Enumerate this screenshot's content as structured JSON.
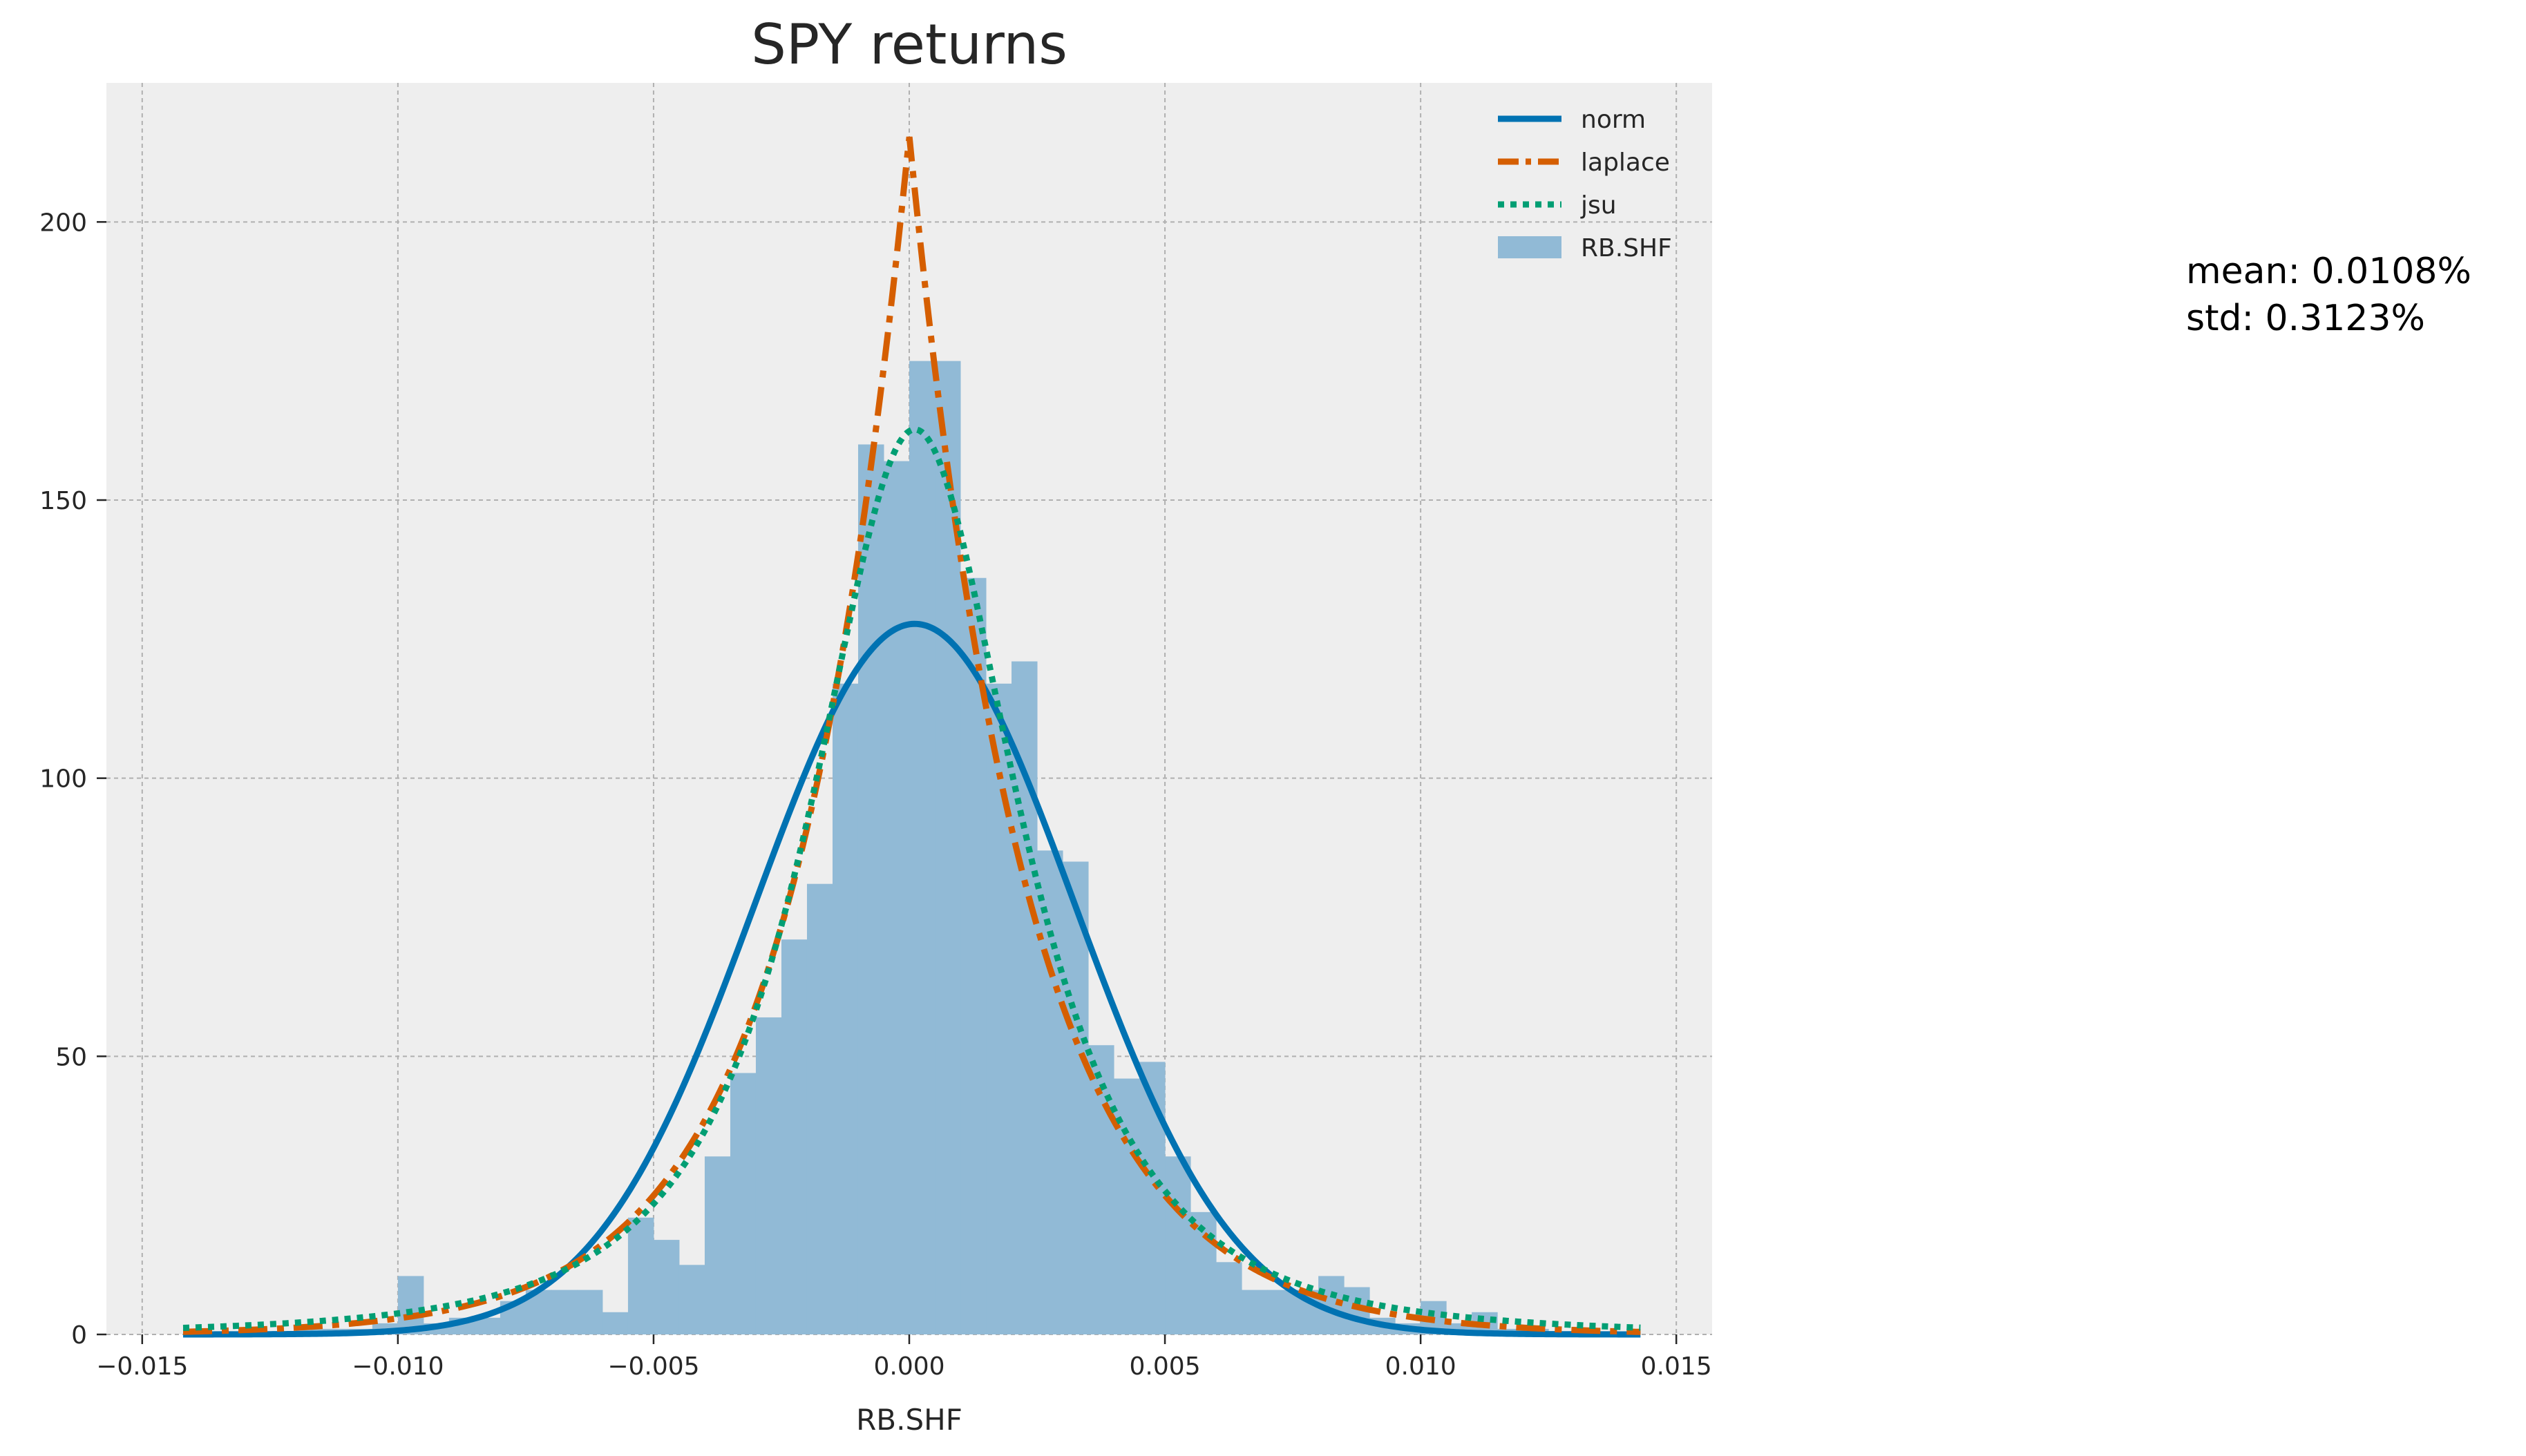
{
  "chart_data": {
    "type": "histogram",
    "title": "SPY returns",
    "xlabel": "RB.SHF",
    "ylabel": "",
    "xlim": [
      -0.0157,
      0.0157
    ],
    "ylim": [
      0,
      225
    ],
    "xticks": [
      -0.015,
      -0.01,
      -0.005,
      0.0,
      0.005,
      0.01,
      0.015
    ],
    "xtick_labels": [
      "−0.015",
      "−0.010",
      "−0.005",
      "0.000",
      "0.005",
      "0.010",
      "0.015"
    ],
    "yticks": [
      0,
      50,
      100,
      150,
      200
    ],
    "ytick_labels": [
      "0",
      "50",
      "100",
      "150",
      "200"
    ],
    "grid": true,
    "legend_position": "top-right",
    "histogram": {
      "name": "RB.SHF",
      "color": "#91bad6",
      "bin_width": 0.0005,
      "bins": [
        [
          -0.014,
          0.5
        ],
        [
          -0.0135,
          0.5
        ],
        [
          -0.013,
          0.5
        ],
        [
          -0.0125,
          0.5
        ],
        [
          -0.012,
          1
        ],
        [
          -0.0115,
          1
        ],
        [
          -0.011,
          1
        ],
        [
          -0.0105,
          2
        ],
        [
          -0.01,
          10.5
        ],
        [
          -0.0095,
          2
        ],
        [
          -0.009,
          3
        ],
        [
          -0.0085,
          3
        ],
        [
          -0.008,
          6
        ],
        [
          -0.0075,
          8
        ],
        [
          -0.007,
          8
        ],
        [
          -0.0065,
          8
        ],
        [
          -0.006,
          4
        ],
        [
          -0.0055,
          21
        ],
        [
          -0.005,
          17
        ],
        [
          -0.0045,
          12.5
        ],
        [
          -0.004,
          32
        ],
        [
          -0.0035,
          47
        ],
        [
          -0.003,
          57
        ],
        [
          -0.0025,
          71
        ],
        [
          -0.002,
          81
        ],
        [
          -0.0015,
          117
        ],
        [
          -0.001,
          160
        ],
        [
          -0.0005,
          157
        ],
        [
          0.0,
          175
        ],
        [
          0.0005,
          175
        ],
        [
          0.001,
          136
        ],
        [
          0.0015,
          117
        ],
        [
          0.002,
          121
        ],
        [
          0.0025,
          87
        ],
        [
          0.003,
          85
        ],
        [
          0.0035,
          52
        ],
        [
          0.004,
          46
        ],
        [
          0.0045,
          49
        ],
        [
          0.005,
          32
        ],
        [
          0.0055,
          22
        ],
        [
          0.006,
          13
        ],
        [
          0.0065,
          8
        ],
        [
          0.007,
          8
        ],
        [
          0.0075,
          8
        ],
        [
          0.008,
          10.5
        ],
        [
          0.0085,
          8.5
        ],
        [
          0.009,
          3
        ],
        [
          0.0095,
          2
        ],
        [
          0.01,
          6
        ],
        [
          0.0105,
          2
        ],
        [
          0.011,
          4
        ],
        [
          0.0115,
          1
        ],
        [
          0.012,
          1
        ],
        [
          0.0125,
          0.5
        ],
        [
          0.013,
          0.5
        ],
        [
          0.0135,
          0.5
        ]
      ]
    },
    "series": [
      {
        "name": "norm",
        "type": "normal",
        "color": "#0072b2",
        "style": "solid",
        "params": {
          "loc": 0.000108,
          "scale": 0.003123
        }
      },
      {
        "name": "laplace",
        "type": "laplace",
        "color": "#d55e00",
        "style": "dashdot",
        "params": {
          "loc": 0.0,
          "scale": 0.00232
        }
      },
      {
        "name": "jsu",
        "type": "johnsonsu",
        "color": "#009e73",
        "style": "dotted",
        "params": {
          "a": 0.0,
          "b": 1.04,
          "loc": 0.00011,
          "scale": 0.00255
        }
      }
    ],
    "fit_range": [
      -0.0142,
      0.0143
    ],
    "legend": [
      "norm",
      "laplace",
      "jsu",
      "RB.SHF"
    ]
  },
  "stats": {
    "mean": "mean: 0.0108%",
    "std": "std: 0.3123%"
  }
}
